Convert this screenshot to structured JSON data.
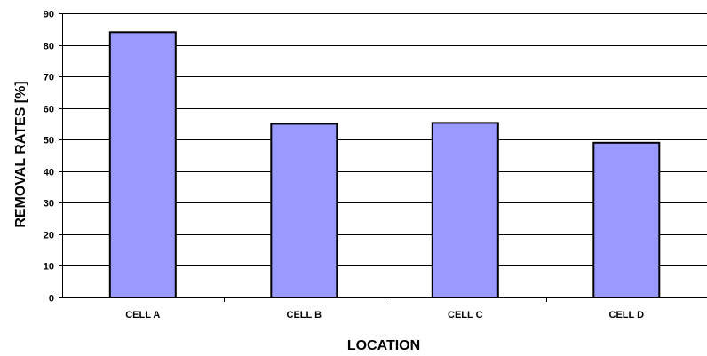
{
  "chart_data": {
    "type": "bar",
    "title": "",
    "xlabel": "LOCATION",
    "ylabel": "REMOVAL RATES [%]",
    "categories": [
      "CELL A",
      "CELL B",
      "CELL C",
      "CELL D"
    ],
    "values": [
      84,
      55,
      55.3,
      49
    ],
    "ylim": [
      0,
      90
    ],
    "yticks": [
      0,
      10,
      20,
      30,
      40,
      50,
      60,
      70,
      80,
      90
    ],
    "grid": true,
    "legend": "none",
    "colors": {
      "bar_fill": "#9999ff",
      "bar_stroke": "#000000",
      "gridline": "#000000"
    }
  }
}
